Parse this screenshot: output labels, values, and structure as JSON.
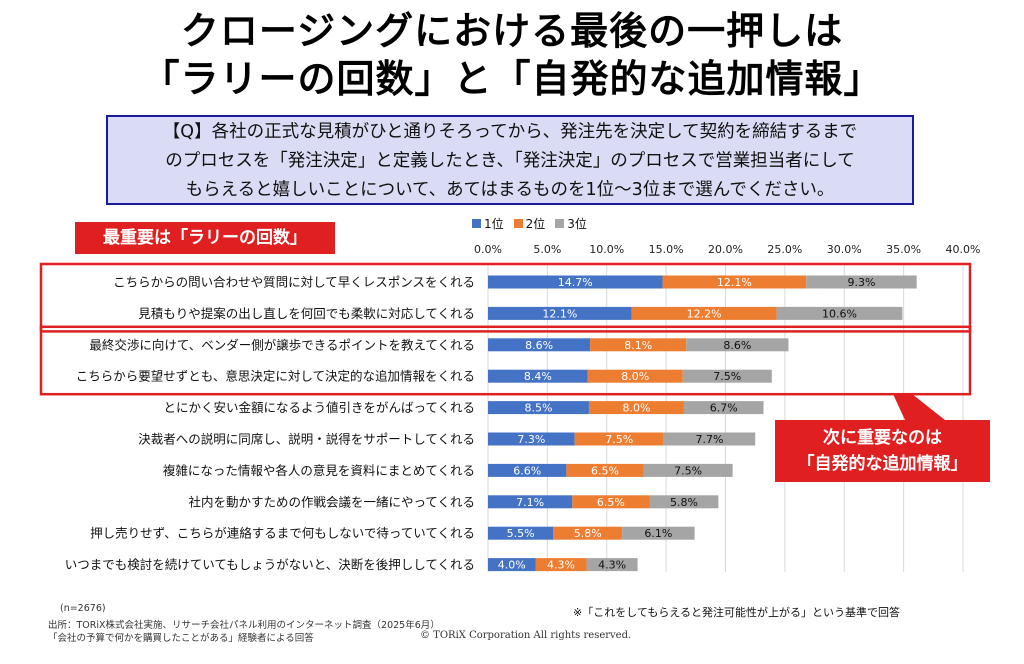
{
  "title_line1": "クロージングにおける最後の一押しは",
  "title_line2": "「ラリーの回数」と「自発的な追加情報」",
  "question": {
    "line1": "【Q】各社の正式な見積がひと通りそろってから、発注先を決定して契約を締結するまで",
    "line2": "のプロセスを「発注決定」と定義したとき、「発注決定」のプロセスで営業担当者にして",
    "line3": "もらえると嬉しいことについて、あてはまるものを1位～3位まで選んでください。"
  },
  "callout1": "最重要は「ラリーの回数」",
  "callout2_line1": "次に重要なのは",
  "callout2_line2": "「自発的な追加情報」",
  "footer": {
    "n": "(n=2676)",
    "source": "出所：TORiX株式会社実施、リサーチ会社パネル利用のインターネット調査（2025年6月）",
    "target": "「会社の予算で何かを購買したことがある」経験者による回答",
    "copyright": "© TORiX Corporation All rights reserved.",
    "note": "※「これをしてもらえると発注可能性が上がる」という基準で回答"
  },
  "chart_data": {
    "type": "bar",
    "orientation": "horizontal",
    "stacked": true,
    "xlim": [
      0,
      40
    ],
    "x_ticks": [
      "0.0%",
      "5.0%",
      "10.0%",
      "15.0%",
      "20.0%",
      "25.0%",
      "30.0%",
      "35.0%",
      "40.0%"
    ],
    "grid": true,
    "legend_position": "top",
    "categories": [
      "こちらからの問い合わせや質問に対して早くレスポンスをくれる",
      "見積もりや提案の出し直しを何回でも柔軟に対応してくれる",
      "最終交渉に向けて、ベンダー側が譲歩できるポイントを教えてくれる",
      "こちらから要望せずとも、意思決定に対して決定的な追加情報をくれる",
      "とにかく安い金額になるよう値引きをがんばってくれる",
      "決裁者への説明に同席し、説明・説得をサポートしてくれる",
      "複雑になった情報や各人の意見を資料にまとめてくれる",
      "社内を動かすための作戦会議を一緒にやってくれる",
      "押し売りせず、こちらが連絡するまで何もしないで待っていてくれる",
      "いつまでも検討を続けていてもしょうがないと、決断を後押ししてくれる"
    ],
    "series": [
      {
        "name": "1位",
        "color": "#4472c4",
        "values": [
          14.7,
          12.1,
          8.6,
          8.4,
          8.5,
          7.3,
          6.6,
          7.1,
          5.5,
          4.0
        ],
        "labels": [
          "14.7%",
          "12.1%",
          "8.6%",
          "8.4%",
          "8.5%",
          "7.3%",
          "6.6%",
          "7.1%",
          "5.5%",
          "4.0%"
        ]
      },
      {
        "name": "2位",
        "color": "#ed7d31",
        "values": [
          12.1,
          12.2,
          8.1,
          8.0,
          8.0,
          7.5,
          6.5,
          6.5,
          5.8,
          4.3
        ],
        "labels": [
          "12.1%",
          "12.2%",
          "8.1%",
          "8.0%",
          "8.0%",
          "7.5%",
          "6.5%",
          "6.5%",
          "5.8%",
          "4.3%"
        ]
      },
      {
        "name": "3位",
        "color": "#a5a5a5",
        "values": [
          9.3,
          10.6,
          8.6,
          7.5,
          6.7,
          7.7,
          7.5,
          5.8,
          6.1,
          4.3
        ],
        "labels": [
          "9.3%",
          "10.6%",
          "8.6%",
          "7.5%",
          "6.7%",
          "7.7%",
          "7.5%",
          "5.8%",
          "6.1%",
          "4.3%"
        ]
      }
    ]
  }
}
